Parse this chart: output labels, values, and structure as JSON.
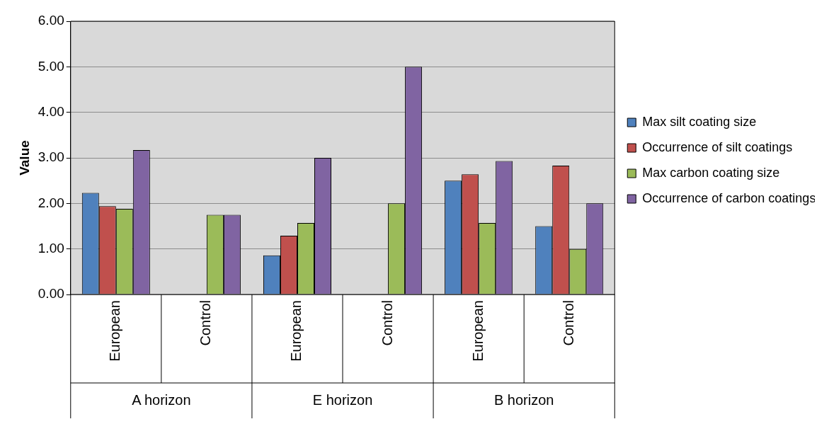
{
  "chart_data": {
    "type": "bar",
    "ylabel": "Value",
    "categories": [
      "European",
      "Control",
      "European",
      "Control",
      "European",
      "Control"
    ],
    "annotations": [
      "A horizon",
      "E horizon",
      "B horizon"
    ],
    "series": [
      {
        "name": "Max silt coating size",
        "color": "#4f81bd",
        "values": [
          2.23,
          0,
          0.86,
          0,
          2.5,
          1.5
        ]
      },
      {
        "name": "Occurrence of silt coatings",
        "color": "#c0504d",
        "values": [
          1.94,
          0,
          1.29,
          0,
          2.64,
          2.83
        ]
      },
      {
        "name": "Max carbon coating size",
        "color": "#9bbb59",
        "values": [
          1.88,
          1.75,
          1.57,
          2.0,
          1.57,
          1.0
        ]
      },
      {
        "name": "Occurrence of carbon coatings",
        "color": "#8064a2",
        "values": [
          3.17,
          1.75,
          3.0,
          5.0,
          2.93,
          2.0
        ]
      }
    ],
    "ylim": [
      0,
      6
    ],
    "yticks": [
      {
        "value": 0,
        "label": "0.00"
      },
      {
        "value": 1,
        "label": "1.00"
      },
      {
        "value": 2,
        "label": "2.00"
      },
      {
        "value": 3,
        "label": "3.00"
      },
      {
        "value": 4,
        "label": "4.00"
      },
      {
        "value": 5,
        "label": "5.00"
      },
      {
        "value": 6,
        "label": "6.00"
      }
    ],
    "grid": "y",
    "legend": "right"
  }
}
